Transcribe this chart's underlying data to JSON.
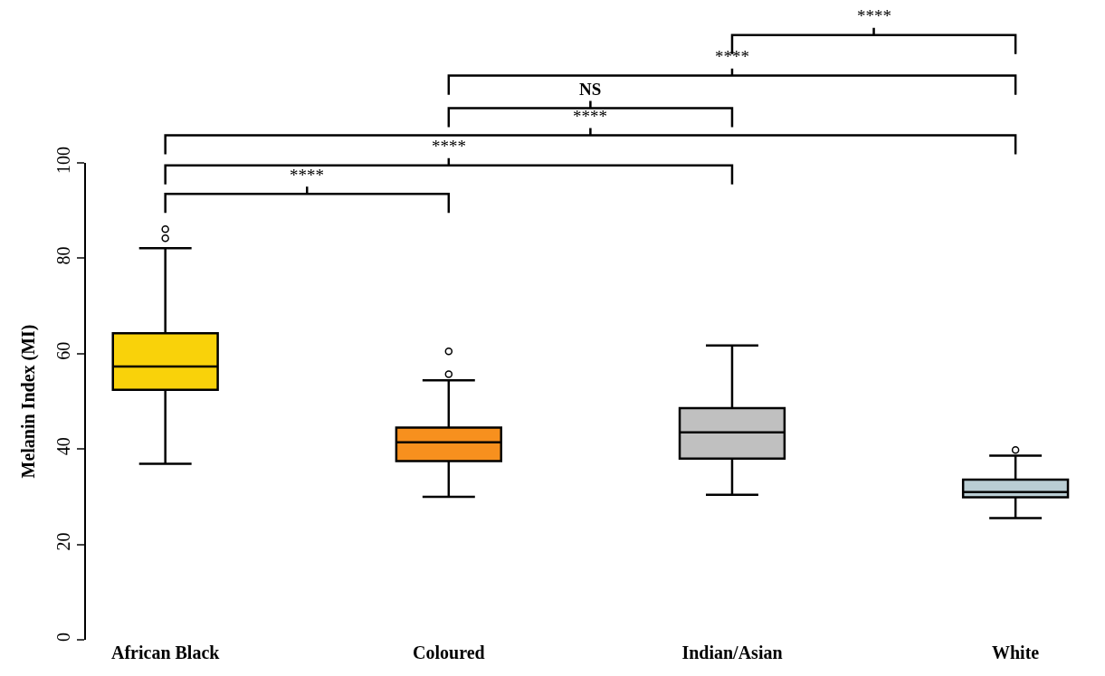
{
  "chart_data": {
    "type": "box",
    "ylabel": "Melanin Index (MI)",
    "categories": [
      "African Black",
      "Coloured",
      "Indian/Asian",
      "White"
    ],
    "colors": [
      "#f9d20a",
      "#f7901e",
      "#c0c0c0",
      "#b9cdd3"
    ],
    "boxes": [
      {
        "low": 36.9,
        "q1": 52.4,
        "median": 57.3,
        "q3": 64.3,
        "high": 82.1,
        "outliers": [
          84.2,
          86.1
        ]
      },
      {
        "low": 30.0,
        "q1": 37.5,
        "median": 41.4,
        "q3": 44.5,
        "high": 54.4,
        "outliers": [
          55.7,
          60.5
        ]
      },
      {
        "low": 30.4,
        "q1": 38.0,
        "median": 43.5,
        "q3": 48.6,
        "high": 61.7
      },
      {
        "low": 25.5,
        "q1": 29.9,
        "median": 31.0,
        "q3": 33.6,
        "high": 38.6,
        "outliers": [
          39.8
        ]
      }
    ],
    "ylim": [
      0,
      100
    ],
    "yticks": [
      0,
      20,
      40,
      60,
      80,
      100
    ],
    "annotations": [
      "****",
      "****",
      "NS",
      "****",
      "****",
      "****"
    ]
  }
}
